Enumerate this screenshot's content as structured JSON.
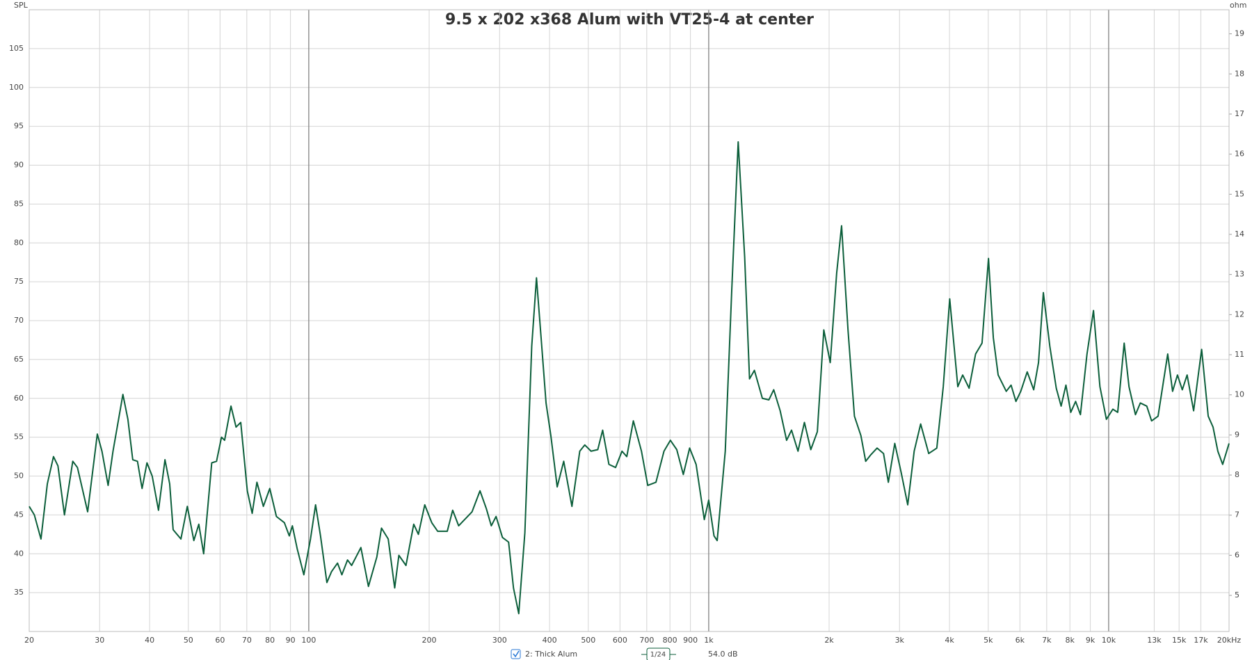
{
  "chart_data": {
    "type": "line",
    "title": "9.5 x 202 x368 Alum with VT25-4 at center",
    "y_label": "SPL",
    "y2_label": "ohm",
    "log_x": true,
    "grid": true,
    "smoothing": "1/24",
    "cursor_level": "54.0 dB",
    "xlim": [
      20,
      20000
    ],
    "xticks": [
      20,
      30,
      40,
      50,
      60,
      70,
      80,
      90,
      100,
      200,
      300,
      400,
      500,
      600,
      700,
      800,
      900,
      {
        "value": 1000,
        "label": "1k"
      },
      {
        "value": 2000,
        "label": "2k"
      },
      {
        "value": 3000,
        "label": "3k"
      },
      {
        "value": 4000,
        "label": "4k"
      },
      {
        "value": 5000,
        "label": "5k"
      },
      {
        "value": 6000,
        "label": "6k"
      },
      {
        "value": 7000,
        "label": "7k"
      },
      {
        "value": 8000,
        "label": "8k"
      },
      {
        "value": 9000,
        "label": "9k"
      },
      {
        "value": 10000,
        "label": "10k"
      },
      {
        "value": 13000,
        "label": "13k"
      },
      {
        "value": 15000,
        "label": "15k"
      },
      {
        "value": 17000,
        "label": "17k"
      },
      {
        "value": 20000,
        "label": "20kHz"
      }
    ],
    "ylim": [
      30,
      110
    ],
    "yticks": [
      35,
      40,
      45,
      50,
      55,
      60,
      65,
      70,
      75,
      80,
      85,
      90,
      95,
      100,
      105
    ],
    "y2lim": [
      4.1,
      19.6
    ],
    "y2ticks": [
      5,
      6,
      7,
      8,
      9,
      10,
      11,
      12,
      13,
      14,
      15,
      16,
      17,
      18,
      19
    ],
    "x": [
      20,
      20.6,
      21.4,
      22.2,
      23.0,
      23.6,
      24.5,
      25.7,
      26.4,
      28.0,
      29.6,
      30.4,
      31.5,
      32.4,
      34.3,
      35.3,
      36.3,
      37.3,
      38.3,
      39.4,
      40.6,
      42.1,
      43.7,
      44.9,
      45.8,
      47.9,
      49.7,
      51.6,
      53.1,
      54.6,
      57.2,
      58.8,
      60.5,
      61.6,
      63.9,
      65.8,
      67.6,
      70.2,
      72.2,
      74.2,
      77.0,
      79.9,
      83.0,
      86.9,
      89.4,
      91.0,
      93.6,
      97.2,
      101,
      104,
      107,
      111,
      114,
      118,
      121,
      125,
      128,
      135,
      141,
      148,
      152,
      158,
      164,
      168,
      175,
      183,
      188,
      195,
      203,
      210,
      222,
      229,
      237,
      256,
      268,
      278,
      286,
      294,
      305,
      316,
      325,
      335,
      347,
      361,
      371,
      381,
      392,
      403,
      418,
      434,
      455,
      476,
      490,
      508,
      528,
      543,
      563,
      585,
      607,
      624,
      648,
      679,
      704,
      738,
      773,
      802,
      832,
      864,
      896,
      930,
      975,
      1000,
      1031,
      1050,
      1100,
      1142,
      1185,
      1230,
      1265,
      1301,
      1362,
      1414,
      1454,
      1509,
      1566,
      1611,
      1672,
      1735,
      1800,
      1869,
      1940,
      2013,
      2089,
      2149,
      2230,
      2314,
      2402,
      2469,
      2539,
      2636,
      2736,
      2813,
      2919,
      3030,
      3145,
      3264,
      3388,
      3549,
      3718,
      3859,
      4005,
      4196,
      4315,
      4478,
      4648,
      4824,
      5007,
      5148,
      5293,
      5546,
      5702,
      5864,
      6029,
      6257,
      6495,
      6678,
      6866,
      7127,
      7397,
      7606,
      7820,
      8041,
      8268,
      8500,
      8828,
      9164,
      9510,
      9871,
      10244,
      10535,
      10935,
      11243,
      11669,
      12000,
      12454,
      12805,
      13290,
      14050,
      14450,
      14860,
      15280,
      15710,
      16310,
      17080,
      17740,
      18240,
      18750,
      19280,
      20000
    ],
    "series": [
      {
        "name": "2: Thick Alum",
        "color": "#0b5e3a",
        "values": [
          46.1,
          45.0,
          41.9,
          49.0,
          52.5,
          51.3,
          45.0,
          51.9,
          51.1,
          45.4,
          55.4,
          53.2,
          48.8,
          53.2,
          60.5,
          57.3,
          52.1,
          51.9,
          48.4,
          51.7,
          50.0,
          45.6,
          52.1,
          49.0,
          43.1,
          41.9,
          46.1,
          41.7,
          43.8,
          40.0,
          51.7,
          51.9,
          55.0,
          54.6,
          59.0,
          56.3,
          56.9,
          48.1,
          45.2,
          49.2,
          46.1,
          48.4,
          44.8,
          44.0,
          42.3,
          43.6,
          40.6,
          37.3,
          41.9,
          46.3,
          42.3,
          36.3,
          37.7,
          38.8,
          37.3,
          39.2,
          38.5,
          40.8,
          35.8,
          39.6,
          43.3,
          41.9,
          35.6,
          39.8,
          38.5,
          43.8,
          42.5,
          46.3,
          44.0,
          42.9,
          42.9,
          45.6,
          43.6,
          45.4,
          48.1,
          45.8,
          43.6,
          44.8,
          42.1,
          41.5,
          35.6,
          32.3,
          42.7,
          66.7,
          75.5,
          67.8,
          59.4,
          55.2,
          48.6,
          51.9,
          46.1,
          53.2,
          54.0,
          53.2,
          53.4,
          55.9,
          51.5,
          51.1,
          53.2,
          52.5,
          57.1,
          53.2,
          48.8,
          49.2,
          53.2,
          54.6,
          53.4,
          50.2,
          53.6,
          51.5,
          44.4,
          46.9,
          42.3,
          41.7,
          53.2,
          74.0,
          93.0,
          78.2,
          62.5,
          63.6,
          60.0,
          59.8,
          61.1,
          58.4,
          54.6,
          55.9,
          53.2,
          56.9,
          53.4,
          55.7,
          68.8,
          64.6,
          76.1,
          82.2,
          68.8,
          57.7,
          55.2,
          51.9,
          52.7,
          53.6,
          52.9,
          49.2,
          54.2,
          50.4,
          46.3,
          53.2,
          56.7,
          52.9,
          53.6,
          61.5,
          72.8,
          61.5,
          63.0,
          61.3,
          65.7,
          67.1,
          78.0,
          67.8,
          63.0,
          60.9,
          61.7,
          59.6,
          60.9,
          63.4,
          61.1,
          64.6,
          73.6,
          66.7,
          61.3,
          59.0,
          61.7,
          58.2,
          59.6,
          57.9,
          65.7,
          71.3,
          61.5,
          57.3,
          58.6,
          58.2,
          67.1,
          61.5,
          57.9,
          59.4,
          59.0,
          57.1,
          57.7,
          65.7,
          60.9,
          63.0,
          61.1,
          63.0,
          58.4,
          66.3,
          57.7,
          56.3,
          53.2,
          51.5,
          54.2
        ]
      }
    ]
  }
}
